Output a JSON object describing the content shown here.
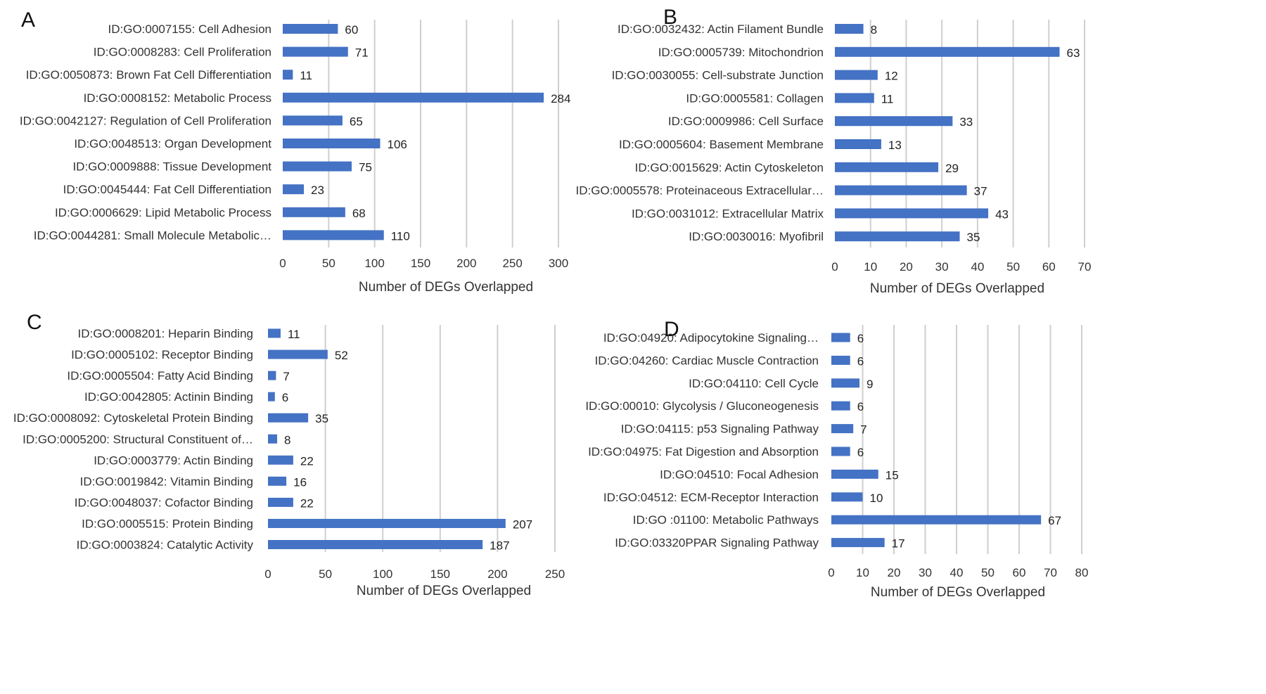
{
  "colors": {
    "bar": "#4472c4",
    "grid": "#cfcfcf",
    "text": "#333333"
  },
  "chart_data": [
    {
      "type": "bar",
      "orientation": "horizontal",
      "panel": "A",
      "title": "",
      "xlabel": "Number of DEGs Overlapped",
      "ylabel": "",
      "xlim": [
        0,
        300
      ],
      "xticks": [
        0,
        50,
        100,
        150,
        200,
        250,
        300
      ],
      "categories": [
        "ID:GO:0007155: Cell Adhesion",
        "ID:GO:0008283: Cell Proliferation",
        "ID:GO:0050873: Brown Fat Cell Differentiation",
        "ID:GO:0008152: Metabolic Process",
        "ID:GO:0042127: Regulation of Cell Proliferation",
        "ID:GO:0048513: Organ Development",
        "ID:GO:0009888: Tissue Development",
        "ID:GO:0045444: Fat Cell Differentiation",
        "ID:GO:0006629: Lipid Metabolic Process",
        "ID:GO:0044281: Small Molecule Metabolic…"
      ],
      "values": [
        60,
        71,
        11,
        284,
        65,
        106,
        75,
        23,
        68,
        110
      ]
    },
    {
      "type": "bar",
      "orientation": "horizontal",
      "panel": "B",
      "title": "",
      "xlabel": "Number of DEGs Overlapped",
      "ylabel": "",
      "xlim": [
        0,
        70
      ],
      "xticks": [
        0,
        10,
        20,
        30,
        40,
        50,
        60,
        70
      ],
      "categories": [
        "ID:GO:0032432: Actin Filament Bundle",
        "ID:GO:0005739: Mitochondrion",
        "ID:GO:0030055: Cell-substrate Junction",
        "ID:GO:0005581: Collagen",
        "ID:GO:0009986: Cell Surface",
        "ID:GO:0005604: Basement Membrane",
        "ID:GO:0015629: Actin Cytoskeleton",
        "ID:GO:0005578: Proteinaceous Extracellular…",
        "ID:GO:0031012: Extracellular Matrix",
        "ID:GO:0030016: Myofibril"
      ],
      "values": [
        8,
        63,
        12,
        11,
        33,
        13,
        29,
        37,
        43,
        35
      ]
    },
    {
      "type": "bar",
      "orientation": "horizontal",
      "panel": "C",
      "title": "",
      "xlabel": "Number of DEGs Overlapped",
      "ylabel": "",
      "xlim": [
        0,
        250
      ],
      "xticks": [
        0,
        50,
        100,
        150,
        200,
        250
      ],
      "categories": [
        "ID:GO:0008201: Heparin Binding",
        "ID:GO:0005102: Receptor Binding",
        "ID:GO:0005504: Fatty Acid Binding",
        "ID:GO:0042805: Actinin Binding",
        "ID:GO:0008092: Cytoskeletal Protein Binding",
        "ID:GO:0005200: Structural Constituent of…",
        "ID:GO:0003779: Actin Binding",
        "ID:GO:0019842: Vitamin Binding",
        "ID:GO:0048037: Cofactor Binding",
        "ID:GO:0005515: Protein Binding",
        "ID:GO:0003824: Catalytic Activity"
      ],
      "values": [
        11,
        52,
        7,
        6,
        35,
        8,
        22,
        16,
        22,
        207,
        187
      ]
    },
    {
      "type": "bar",
      "orientation": "horizontal",
      "panel": "D",
      "title": "",
      "xlabel": "Number  of DEGs Overlapped",
      "ylabel": "",
      "xlim": [
        0,
        80
      ],
      "xticks": [
        0,
        10,
        20,
        30,
        40,
        50,
        60,
        70,
        80
      ],
      "categories": [
        "ID:GO:04920: Adipocytokine Signaling…",
        "ID:GO:04260: Cardiac Muscle Contraction",
        "ID:GO:04110: Cell Cycle",
        "ID:GO:00010: Glycolysis / Gluconeogenesis",
        "ID:GO:04115: p53 Signaling Pathway",
        "ID:GO:04975: Fat Digestion and Absorption",
        "ID:GO:04510: Focal Adhesion",
        "ID:GO:04512: ECM-Receptor Interaction",
        "ID:GO :01100: Metabolic Pathways",
        "ID:GO:03320PPAR Signaling Pathway"
      ],
      "values": [
        6,
        6,
        9,
        6,
        7,
        6,
        15,
        10,
        67,
        17
      ]
    }
  ]
}
